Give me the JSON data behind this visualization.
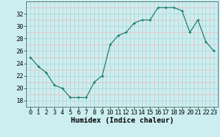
{
  "x": [
    0,
    1,
    2,
    3,
    4,
    5,
    6,
    7,
    8,
    9,
    10,
    11,
    12,
    13,
    14,
    15,
    16,
    17,
    18,
    19,
    20,
    21,
    22,
    23
  ],
  "y": [
    25,
    23.5,
    22.5,
    20.5,
    20,
    18.5,
    18.5,
    18.5,
    21,
    22,
    27,
    28.5,
    29,
    30.5,
    31,
    31,
    33,
    33,
    33,
    32.5,
    29,
    31,
    27.5,
    26
  ],
  "xlabel": "Humidex (Indice chaleur)",
  "xlim": [
    -0.5,
    23.5
  ],
  "ylim": [
    17,
    34
  ],
  "yticks": [
    18,
    20,
    22,
    24,
    26,
    28,
    30,
    32
  ],
  "xticks": [
    0,
    1,
    2,
    3,
    4,
    5,
    6,
    7,
    8,
    9,
    10,
    11,
    12,
    13,
    14,
    15,
    16,
    17,
    18,
    19,
    20,
    21,
    22,
    23
  ],
  "line_color": "#1a7a6e",
  "marker": "+",
  "marker_size": 3,
  "bg_color": "#cceef0",
  "major_grid_color": "#aadddd",
  "minor_grid_color": "#e8b8b8",
  "tick_label_fontsize": 6.5,
  "xlabel_fontsize": 7.5
}
